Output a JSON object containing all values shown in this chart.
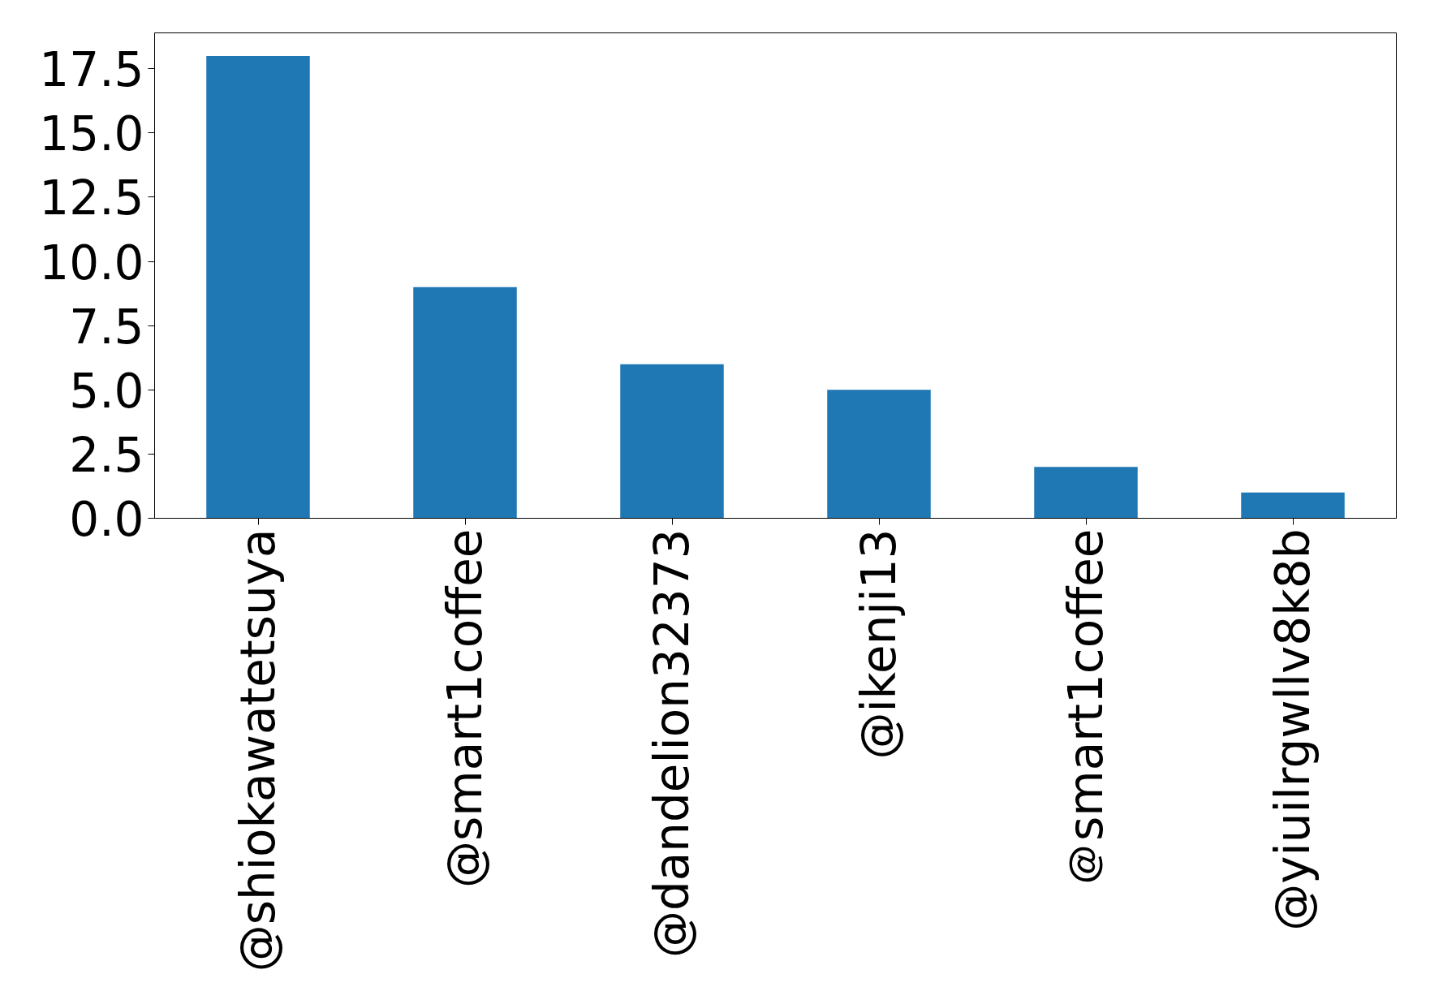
{
  "chart_data": {
    "type": "bar",
    "categories": [
      "@shiokawatetsuya",
      "@smart1coffee",
      "@dandelion32373",
      "@ikenji13",
      "＠smart1coffee",
      "@yiuilrgwllv8k8b"
    ],
    "values": [
      18,
      9,
      6,
      5,
      2,
      1
    ],
    "color": "#1f77b4",
    "ylim": [
      0,
      18.9
    ],
    "yticks": [
      {
        "value": 0,
        "label": "0.0"
      },
      2.5,
      {
        "value": 5,
        "label": "5.0"
      },
      7.5,
      {
        "value": 10,
        "label": "10.0"
      },
      12.5,
      {
        "value": 15,
        "label": "15.0"
      },
      17.5
    ],
    "grid": false
  }
}
